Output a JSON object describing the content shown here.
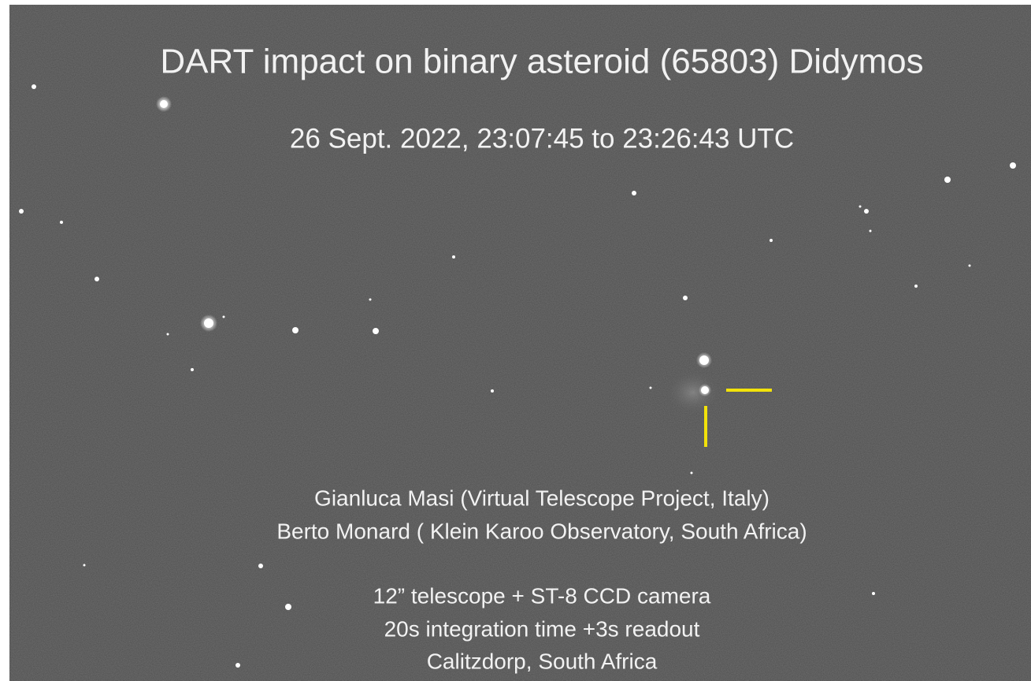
{
  "title": "DART impact on binary asteroid (65803) Didymos",
  "subtitle": "26 Sept. 2022,  23:07:45 to 23:26:43 UTC",
  "credits": [
    "Gianluca Masi (Virtual Telescope Project, Italy)",
    "Berto Monard ( Klein Karoo Observatory, South Africa)"
  ],
  "equipment": [
    "12” telescope + ST-8 CCD camera",
    "20s integration time +3s readout",
    "Calitzdorp, South Africa"
  ]
}
